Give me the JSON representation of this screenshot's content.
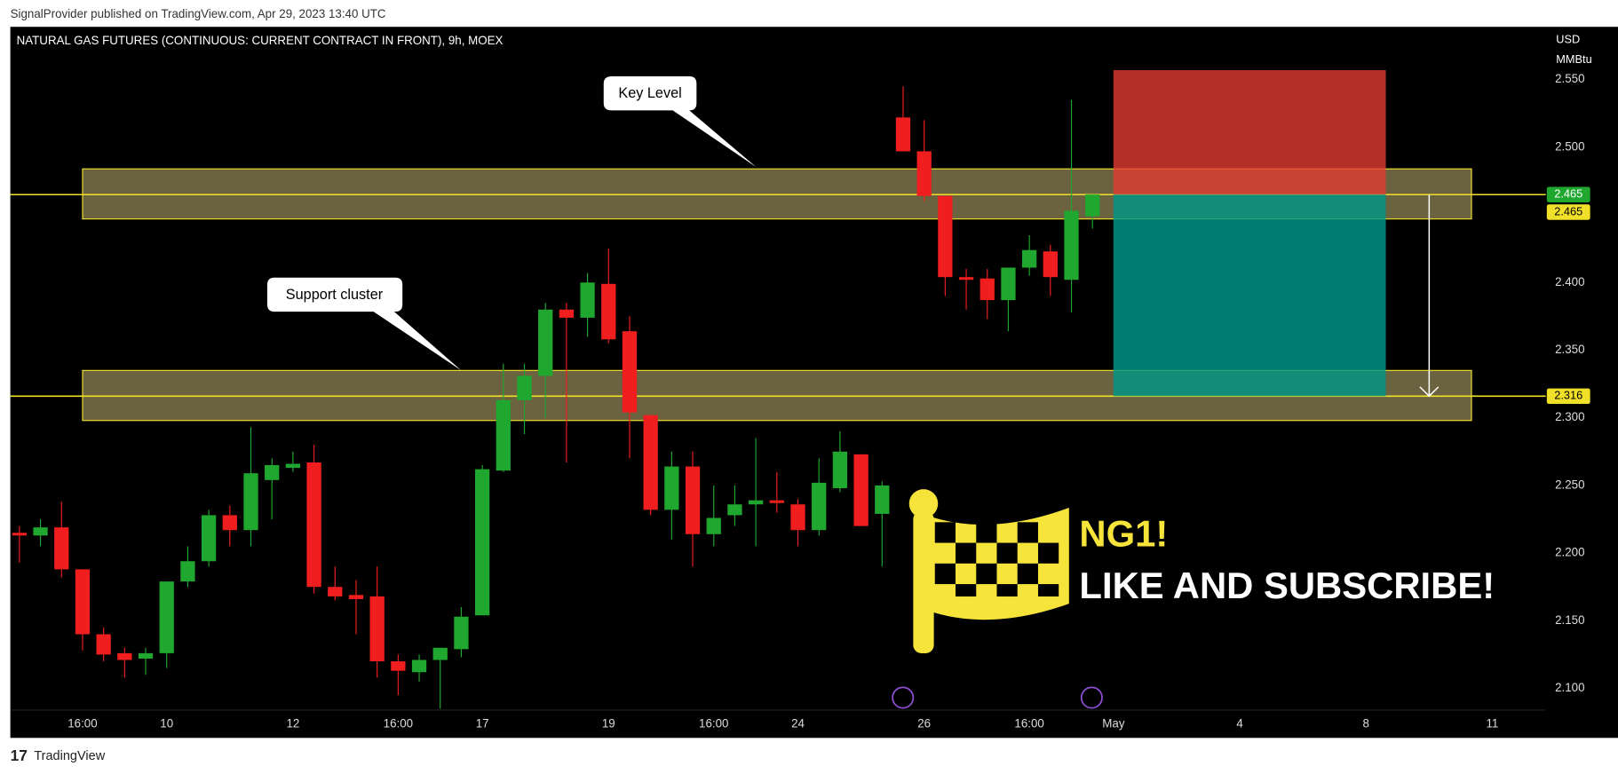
{
  "header": {
    "publisher": "SignalProvider published on TradingView.com, Apr 29, 2023 13:40 UTC",
    "footer": "TradingView"
  },
  "chart_data": {
    "type": "candlestick",
    "title": "NATURAL GAS FUTURES (CONTINUOUS: CURRENT CONTRACT IN FRONT), 9h, MOEX",
    "currency": "USD",
    "unit": "MMBtu",
    "categories": [
      null,
      null,
      null,
      "16:00",
      null,
      null,
      null,
      "10",
      null,
      null,
      null,
      null,
      null,
      "12",
      null,
      null,
      null,
      null,
      "16:00",
      null,
      null,
      null,
      "17",
      null,
      null,
      null,
      null,
      null,
      "19",
      null,
      null,
      null,
      null,
      "16:00",
      null,
      null,
      null,
      "24",
      null,
      null,
      null,
      null,
      null,
      "26",
      null,
      null,
      null,
      null,
      "16:00",
      null,
      null,
      null,
      "May",
      null,
      null,
      null,
      null,
      null,
      "4",
      null,
      null,
      null,
      null,
      null,
      "8",
      null,
      null,
      null,
      null,
      null,
      "11",
      null,
      null
    ],
    "open": [
      2.215,
      2.213,
      2.219,
      2.188,
      2.14,
      2.126,
      2.122,
      2.126,
      2.179,
      2.194,
      2.228,
      2.217,
      2.254,
      2.263,
      2.267,
      2.175,
      2.169,
      2.168,
      2.12,
      2.112,
      2.121,
      2.129,
      2.154,
      2.261,
      2.313,
      2.331,
      2.38,
      2.374,
      2.399,
      2.364,
      2.302,
      2.232,
      2.264,
      2.214,
      2.228,
      2.236,
      2.239,
      2.236,
      2.217,
      2.248,
      2.273,
      2.229,
      2.522,
      2.497,
      2.464,
      2.404,
      2.403,
      2.387,
      2.411,
      2.423,
      2.402,
      2.449,
      null,
      null,
      null,
      null,
      null,
      null,
      null,
      null,
      null,
      null,
      null,
      null,
      null,
      null,
      null,
      null,
      null,
      null,
      null,
      null,
      null
    ],
    "high": [
      2.22,
      2.225,
      2.238,
      2.188,
      2.145,
      2.13,
      2.13,
      2.179,
      2.205,
      2.232,
      2.235,
      2.293,
      2.27,
      2.275,
      2.28,
      2.19,
      2.18,
      2.19,
      2.125,
      2.125,
      2.13,
      2.16,
      2.265,
      2.34,
      2.34,
      2.385,
      2.385,
      2.407,
      2.425,
      2.375,
      2.302,
      2.275,
      2.275,
      2.25,
      2.25,
      2.285,
      2.26,
      2.24,
      2.27,
      2.29,
      2.273,
      2.253,
      2.545,
      2.52,
      2.464,
      2.41,
      2.41,
      2.41,
      2.435,
      2.428,
      2.535,
      2.465,
      null,
      null,
      null,
      null,
      null,
      null,
      null,
      null,
      null,
      null,
      null,
      null,
      null,
      null,
      null,
      null,
      null,
      null,
      null,
      null,
      null
    ],
    "low": [
      2.193,
      2.205,
      2.182,
      2.128,
      2.12,
      2.108,
      2.11,
      2.115,
      2.175,
      2.19,
      2.205,
      2.205,
      2.225,
      2.26,
      2.17,
      2.165,
      2.14,
      2.108,
      2.095,
      2.105,
      2.085,
      2.123,
      2.154,
      2.26,
      2.288,
      2.3,
      2.267,
      2.36,
      2.355,
      2.27,
      2.228,
      2.21,
      2.19,
      2.205,
      2.22,
      2.205,
      2.23,
      2.205,
      2.213,
      2.245,
      2.22,
      2.19,
      2.497,
      2.46,
      2.39,
      2.38,
      2.373,
      2.364,
      2.405,
      2.39,
      2.378,
      2.44,
      null,
      null,
      null,
      null,
      null,
      null,
      null,
      null,
      null,
      null,
      null,
      null,
      null,
      null,
      null,
      null,
      null,
      null,
      null,
      null,
      null
    ],
    "close": [
      2.213,
      2.219,
      2.188,
      2.14,
      2.125,
      2.121,
      2.126,
      2.179,
      2.194,
      2.228,
      2.217,
      2.259,
      2.265,
      2.266,
      2.175,
      2.168,
      2.166,
      2.12,
      2.113,
      2.121,
      2.13,
      2.153,
      2.262,
      2.313,
      2.331,
      2.38,
      2.374,
      2.4,
      2.358,
      2.304,
      2.232,
      2.264,
      2.214,
      2.226,
      2.236,
      2.239,
      2.237,
      2.217,
      2.252,
      2.275,
      2.22,
      2.25,
      2.497,
      2.464,
      2.404,
      2.402,
      2.387,
      2.411,
      2.424,
      2.404,
      2.453,
      2.465,
      null,
      null,
      null,
      null,
      null,
      null,
      null,
      null,
      null,
      null,
      null,
      null,
      null,
      null,
      null,
      null,
      null,
      null,
      null,
      null,
      null
    ],
    "colors": {
      "up": "#1fa730",
      "down": "#f01e1e",
      "zone": "#6b6240",
      "zone_edge": "#f0e02a"
    },
    "ylim": [
      2.084,
      2.589
    ],
    "yticks": [
      {
        "value": 2.1,
        "label": "2.100"
      },
      {
        "value": 2.15,
        "label": "2.150"
      },
      {
        "value": 2.2,
        "label": "2.200"
      },
      {
        "value": 2.25,
        "label": "2.250"
      },
      {
        "value": 2.3,
        "label": "2.300"
      },
      {
        "value": 2.35,
        "label": "2.350"
      },
      {
        "value": 2.4,
        "label": "2.400"
      },
      {
        "value": 2.5,
        "label": "2.500"
      },
      {
        "value": 2.55,
        "label": "2.550"
      }
    ],
    "zones": [
      {
        "label": "Key Level",
        "range": [
          2.447,
          2.484
        ],
        "level": 2.465
      },
      {
        "label": "Support cluster",
        "range": [
          2.298,
          2.335
        ],
        "level": 2.316
      }
    ],
    "position": {
      "stop": 2.557,
      "entry": 2.465,
      "target": 2.316
    },
    "price_tags": [
      {
        "value": 2.465,
        "color": "#1fa730"
      },
      {
        "value": 2.465,
        "color": "#f0e02a"
      },
      {
        "value": 2.316,
        "color": "#f0e02a"
      }
    ],
    "promo": {
      "symbol": "NG1!",
      "call": "LIKE AND SUBSCRIBE!"
    }
  }
}
